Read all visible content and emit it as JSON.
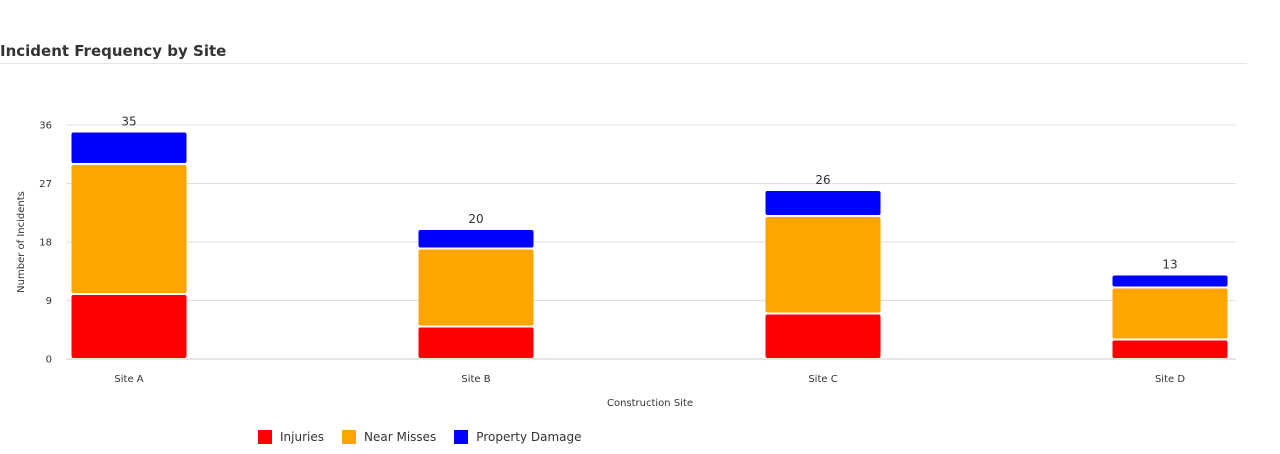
{
  "chart_data": {
    "type": "bar",
    "stacked": true,
    "title": "Incident Frequency by Site",
    "xlabel": "Construction Site",
    "ylabel": "Number of Incidents",
    "categories": [
      "Site A",
      "Site B",
      "Site C",
      "Site D"
    ],
    "series": [
      {
        "name": "Injuries",
        "color": "#ff0000",
        "values": [
          10,
          5,
          7,
          3
        ]
      },
      {
        "name": "Near Misses",
        "color": "#ffa500",
        "values": [
          20,
          12,
          15,
          8
        ]
      },
      {
        "name": "Property Damage",
        "color": "#0000ff",
        "values": [
          5,
          3,
          4,
          2
        ]
      }
    ],
    "totals": [
      35,
      20,
      26,
      13
    ],
    "yticks": [
      0,
      9,
      18,
      27,
      36
    ],
    "ylim": [
      0,
      36
    ],
    "grid": true,
    "legend": "bottom"
  }
}
